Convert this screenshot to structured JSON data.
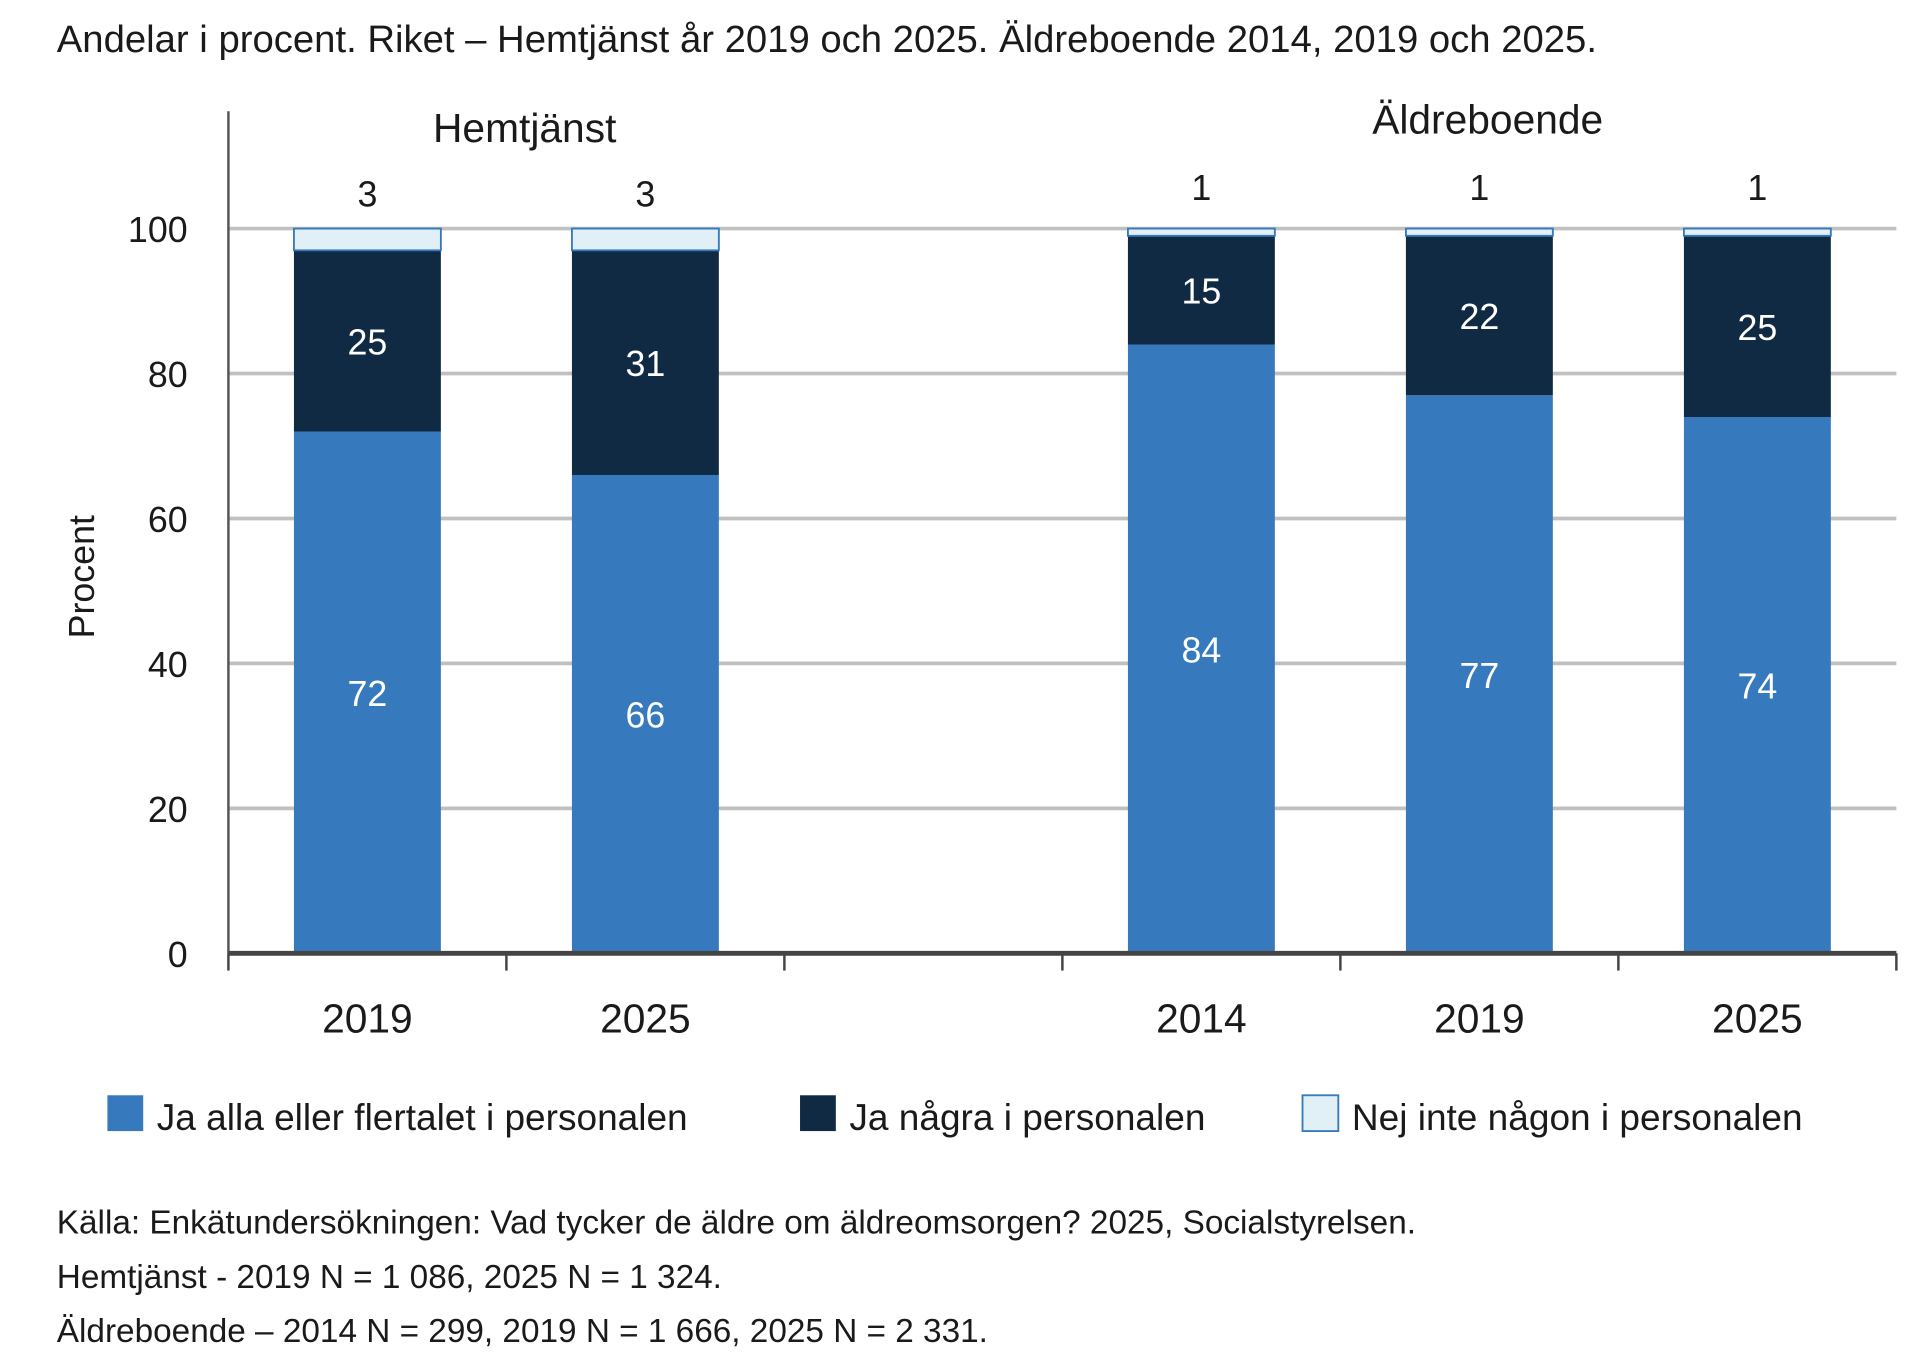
{
  "chart_data": {
    "type": "bar",
    "stacked": true,
    "title": "Andelar i procent. Riket – Hemtjänst år 2019 och 2025. Äldreboende 2014, 2019 och 2025.",
    "ylabel": "Procent",
    "ylim": [
      0,
      100
    ],
    "yticks": [
      "0",
      "20",
      "40",
      "60",
      "80",
      "100"
    ],
    "grid": true,
    "legend_position": "bottom",
    "groups": [
      {
        "label": "Hemtjänst",
        "categories": [
          "2019",
          "2025"
        ]
      },
      {
        "label": "Äldreboende",
        "categories": [
          "2014",
          "2019",
          "2025"
        ]
      }
    ],
    "categories": [
      "2019",
      "2025",
      "2014",
      "2019",
      "2025"
    ],
    "series": [
      {
        "name": "Ja alla eller flertalet i personalen",
        "color": "#367abd",
        "values": [
          72,
          66,
          84,
          77,
          74
        ]
      },
      {
        "name": "Ja några i personalen",
        "color": "#102a43",
        "values": [
          25,
          31,
          15,
          22,
          25
        ]
      },
      {
        "name": "Nej inte någon i personalen",
        "color": "#e1eff7",
        "values": [
          3,
          3,
          1,
          1,
          1
        ]
      }
    ]
  },
  "notes": [
    "Källa: Enkätundersökningen: Vad tycker de äldre om äldreomsorgen?  2025, Socialstyrelsen.",
    "Hemtjänst - 2019 N = 1 086, 2025 N = 1 324.",
    "Äldreboende – 2014 N = 299, 2019 N = 1 666, 2025 N = 2 331."
  ]
}
